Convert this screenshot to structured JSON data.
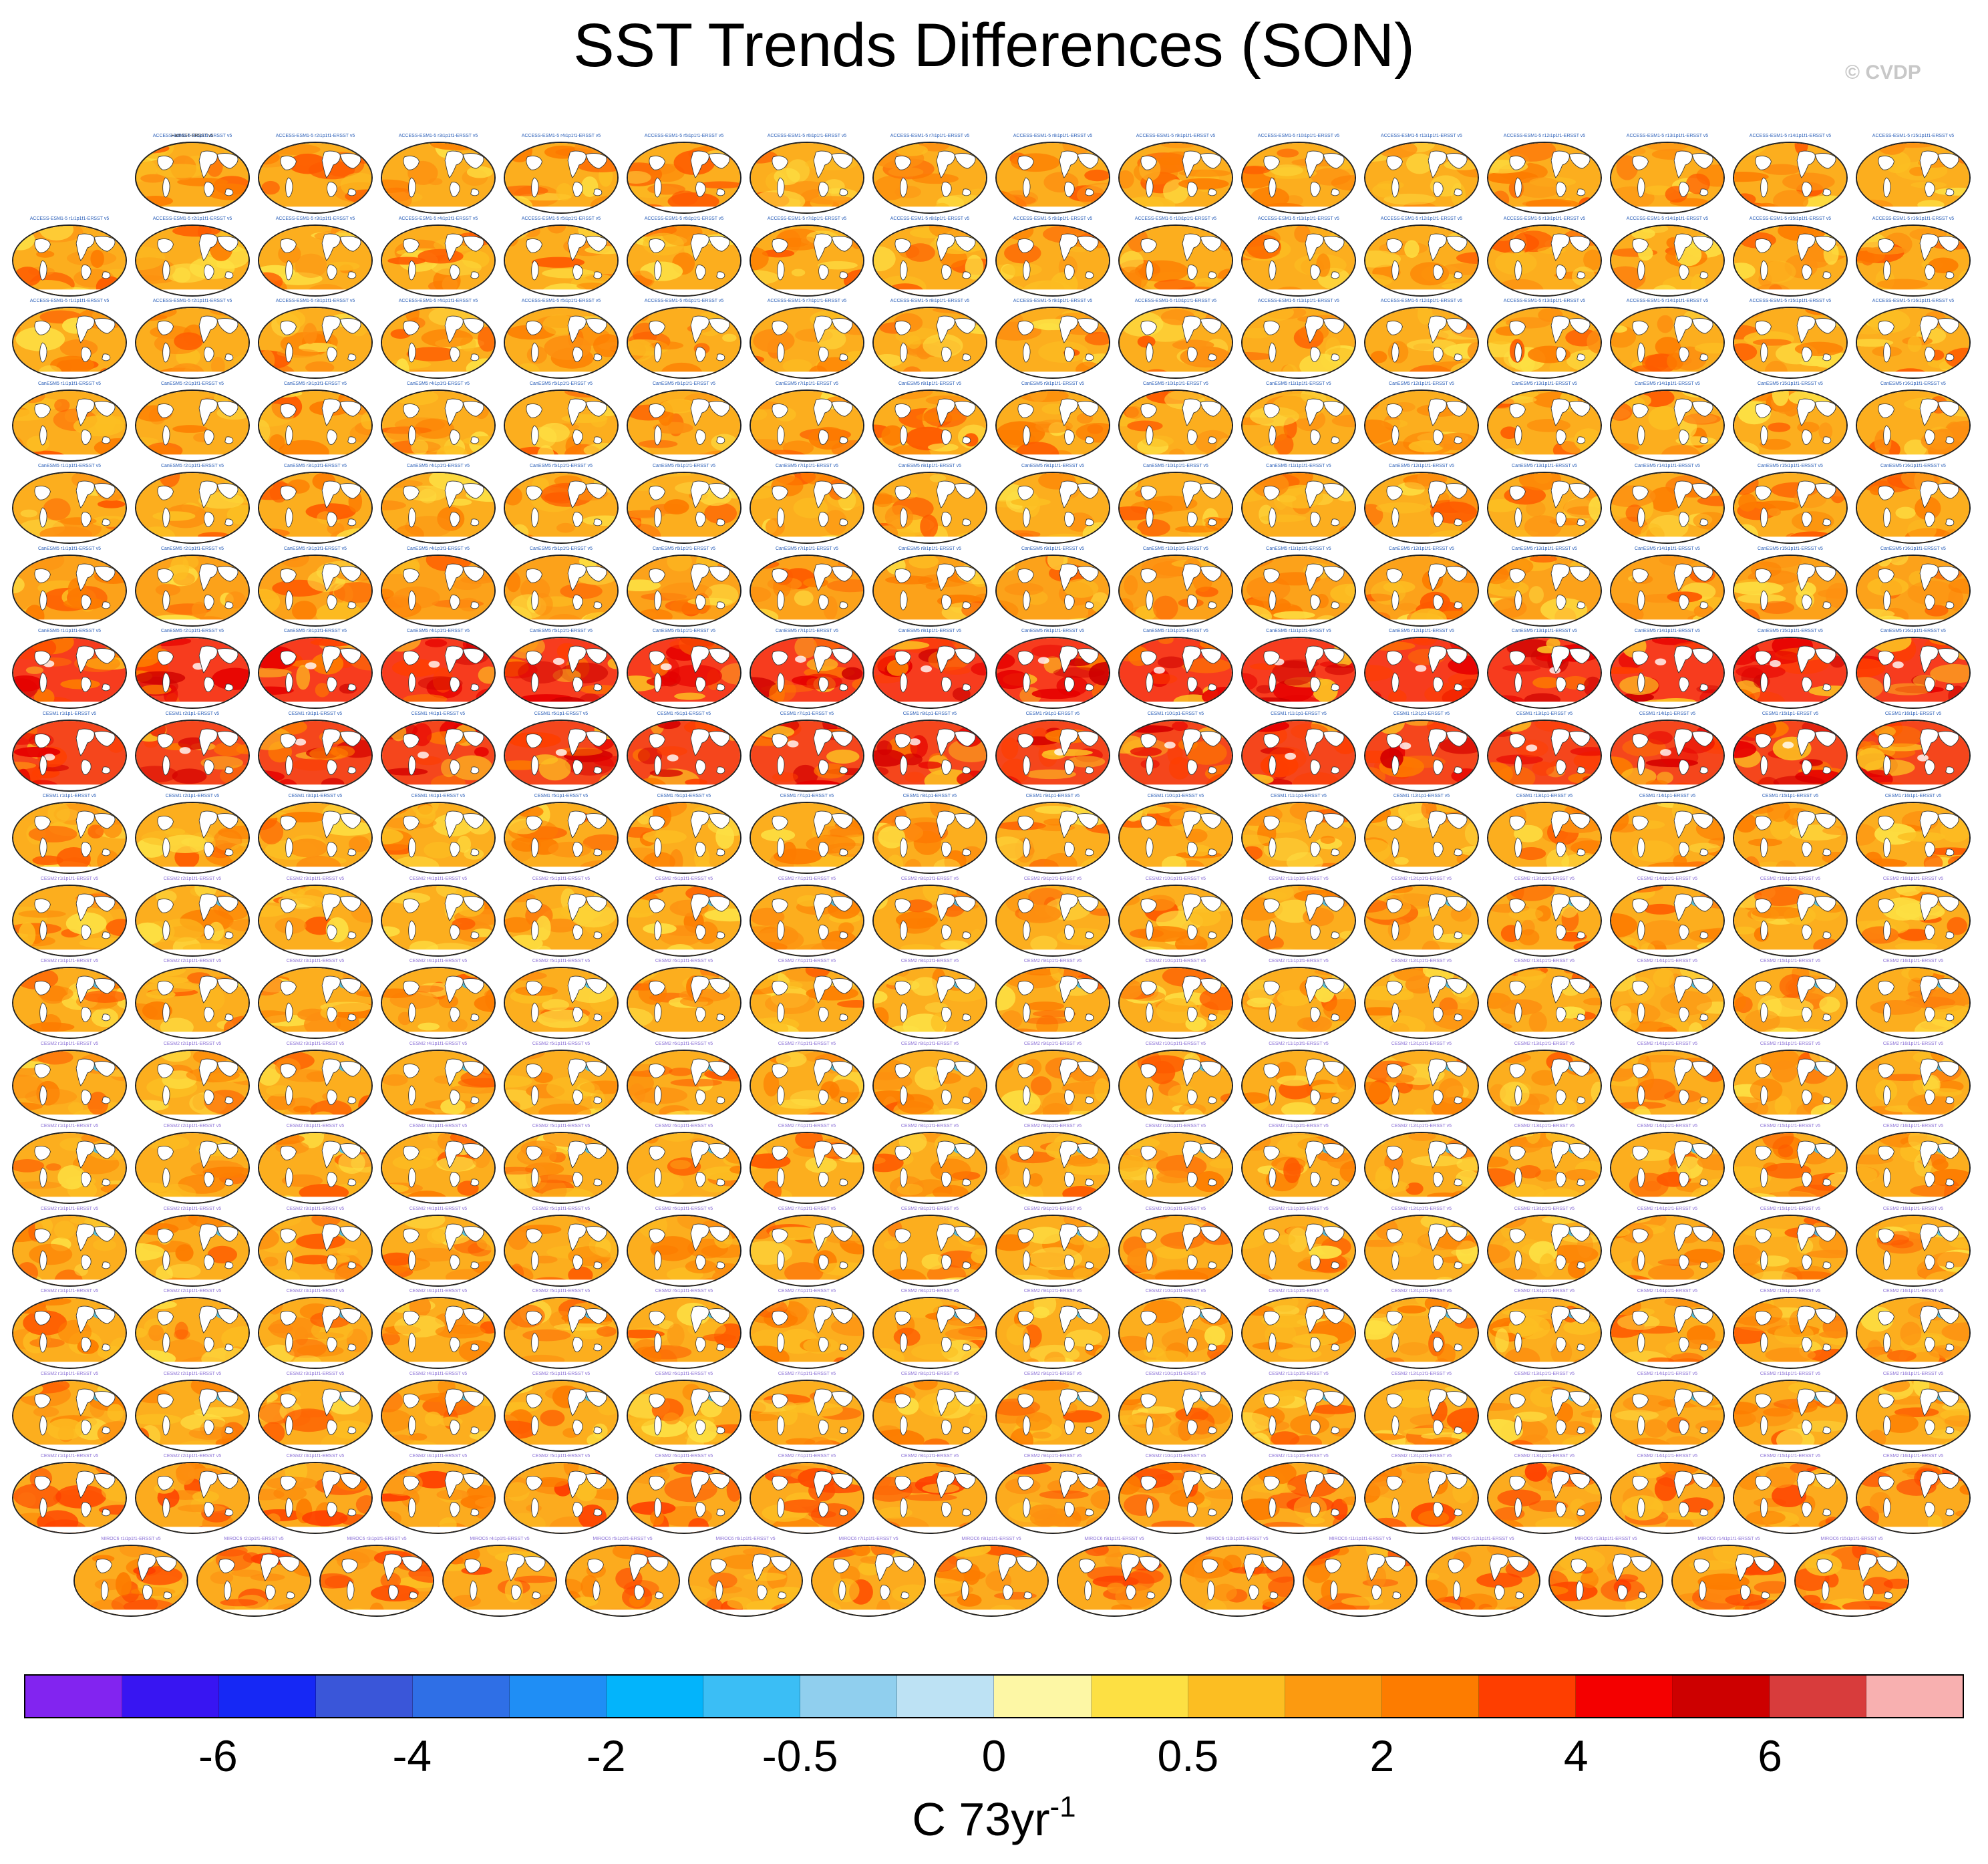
{
  "title": "SST Trends Differences (SON)",
  "watermark": "© CVDP",
  "chart_data": {
    "type": "heatmap",
    "title": "SST Trends Differences (SON)",
    "field": "sea surface temperature trend difference",
    "season": "SON",
    "projection": "global map panels",
    "reference_panel": "HadISST-ERSST v5",
    "panel_rows": [
      {
        "count": 15,
        "offset": 1,
        "mode": "warm",
        "label": "ACCESS-ESM1-5 r{n}i1p1f1-ERSST v5"
      },
      {
        "count": 16,
        "offset": 0,
        "mode": "warm",
        "label": "ACCESS-ESM1-5 r{n}i1p1f1-ERSST v5"
      },
      {
        "count": 16,
        "offset": 0,
        "mode": "warm",
        "label": "ACCESS-ESM1-5 r{n}i1p1f1-ERSST v5"
      },
      {
        "count": 16,
        "offset": 0,
        "mode": "warm",
        "label": "CanESM5 r{n}i1p1f1-ERSST v5"
      },
      {
        "count": 16,
        "offset": 0,
        "mode": "warm",
        "label": "CanESM5 r{n}i1p1f1-ERSST v5"
      },
      {
        "count": 16,
        "offset": 0,
        "mode": "mixed",
        "label": "CanESM5 r{n}i1p1f1-ERSST v5"
      },
      {
        "count": 16,
        "offset": 0,
        "mode": "hot",
        "label": "CanESM5 r{n}i1p1f1-ERSST v5"
      },
      {
        "count": 16,
        "offset": 0,
        "mode": "hotmixed",
        "label": "CESM1 r{n}i1p1-ERSST v5"
      },
      {
        "count": 16,
        "offset": 0,
        "mode": "warm",
        "label": "CESM1 r{n}i1p1-ERSST v5"
      },
      {
        "count": 16,
        "offset": 0,
        "mode": "warmblue",
        "label": "CESM2 r{n}i1p1f1-ERSST v5"
      },
      {
        "count": 16,
        "offset": 0,
        "mode": "warmblue",
        "label": "CESM2 r{n}i1p1f1-ERSST v5"
      },
      {
        "count": 16,
        "offset": 0,
        "mode": "warmblue",
        "label": "CESM2 r{n}i1p1f1-ERSST v5"
      },
      {
        "count": 16,
        "offset": 0,
        "mode": "warmblue",
        "label": "CESM2 r{n}i1p1f1-ERSST v5"
      },
      {
        "count": 16,
        "offset": 0,
        "mode": "warmblue",
        "label": "CESM2 r{n}i1p1f1-ERSST v5"
      },
      {
        "count": 16,
        "offset": 0,
        "mode": "warmblue",
        "label": "CESM2 r{n}i1p1f1-ERSST v5"
      },
      {
        "count": 16,
        "offset": 0,
        "mode": "warmblue",
        "label": "CESM2 r{n}i1p1f1-ERSST v5"
      },
      {
        "count": 16,
        "offset": 0,
        "mode": "pacwarm",
        "label": "CESM2 r{n}i1p1f1-ERSST v5"
      },
      {
        "count": 15,
        "offset": 0.5,
        "mode": "pacwarm",
        "label": "MIROC6 r{n}i1p1f1-ERSST v5"
      }
    ],
    "colorbar": {
      "units": "C 73yr",
      "units_exponent": "-1",
      "tick_labels": [
        "-6",
        "-4",
        "-2",
        "-0.5",
        "0",
        "0.5",
        "2",
        "4",
        "6"
      ],
      "tick_box_boundaries": [
        2,
        4,
        6,
        8,
        10,
        12,
        14,
        16,
        18
      ],
      "colors": [
        "#8224f0",
        "#3815f2",
        "#1628f5",
        "#3a56d9",
        "#2f6fe6",
        "#1f8ef5",
        "#03b4fb",
        "#3bbef5",
        "#90cfee",
        "#bde2f4",
        "#fdf7a5",
        "#fde043",
        "#fcbe22",
        "#fc9a10",
        "#fd7c00",
        "#fe3e00",
        "#f40000",
        "#cd0000",
        "#d83c3c",
        "#f8b0b0"
      ]
    }
  }
}
